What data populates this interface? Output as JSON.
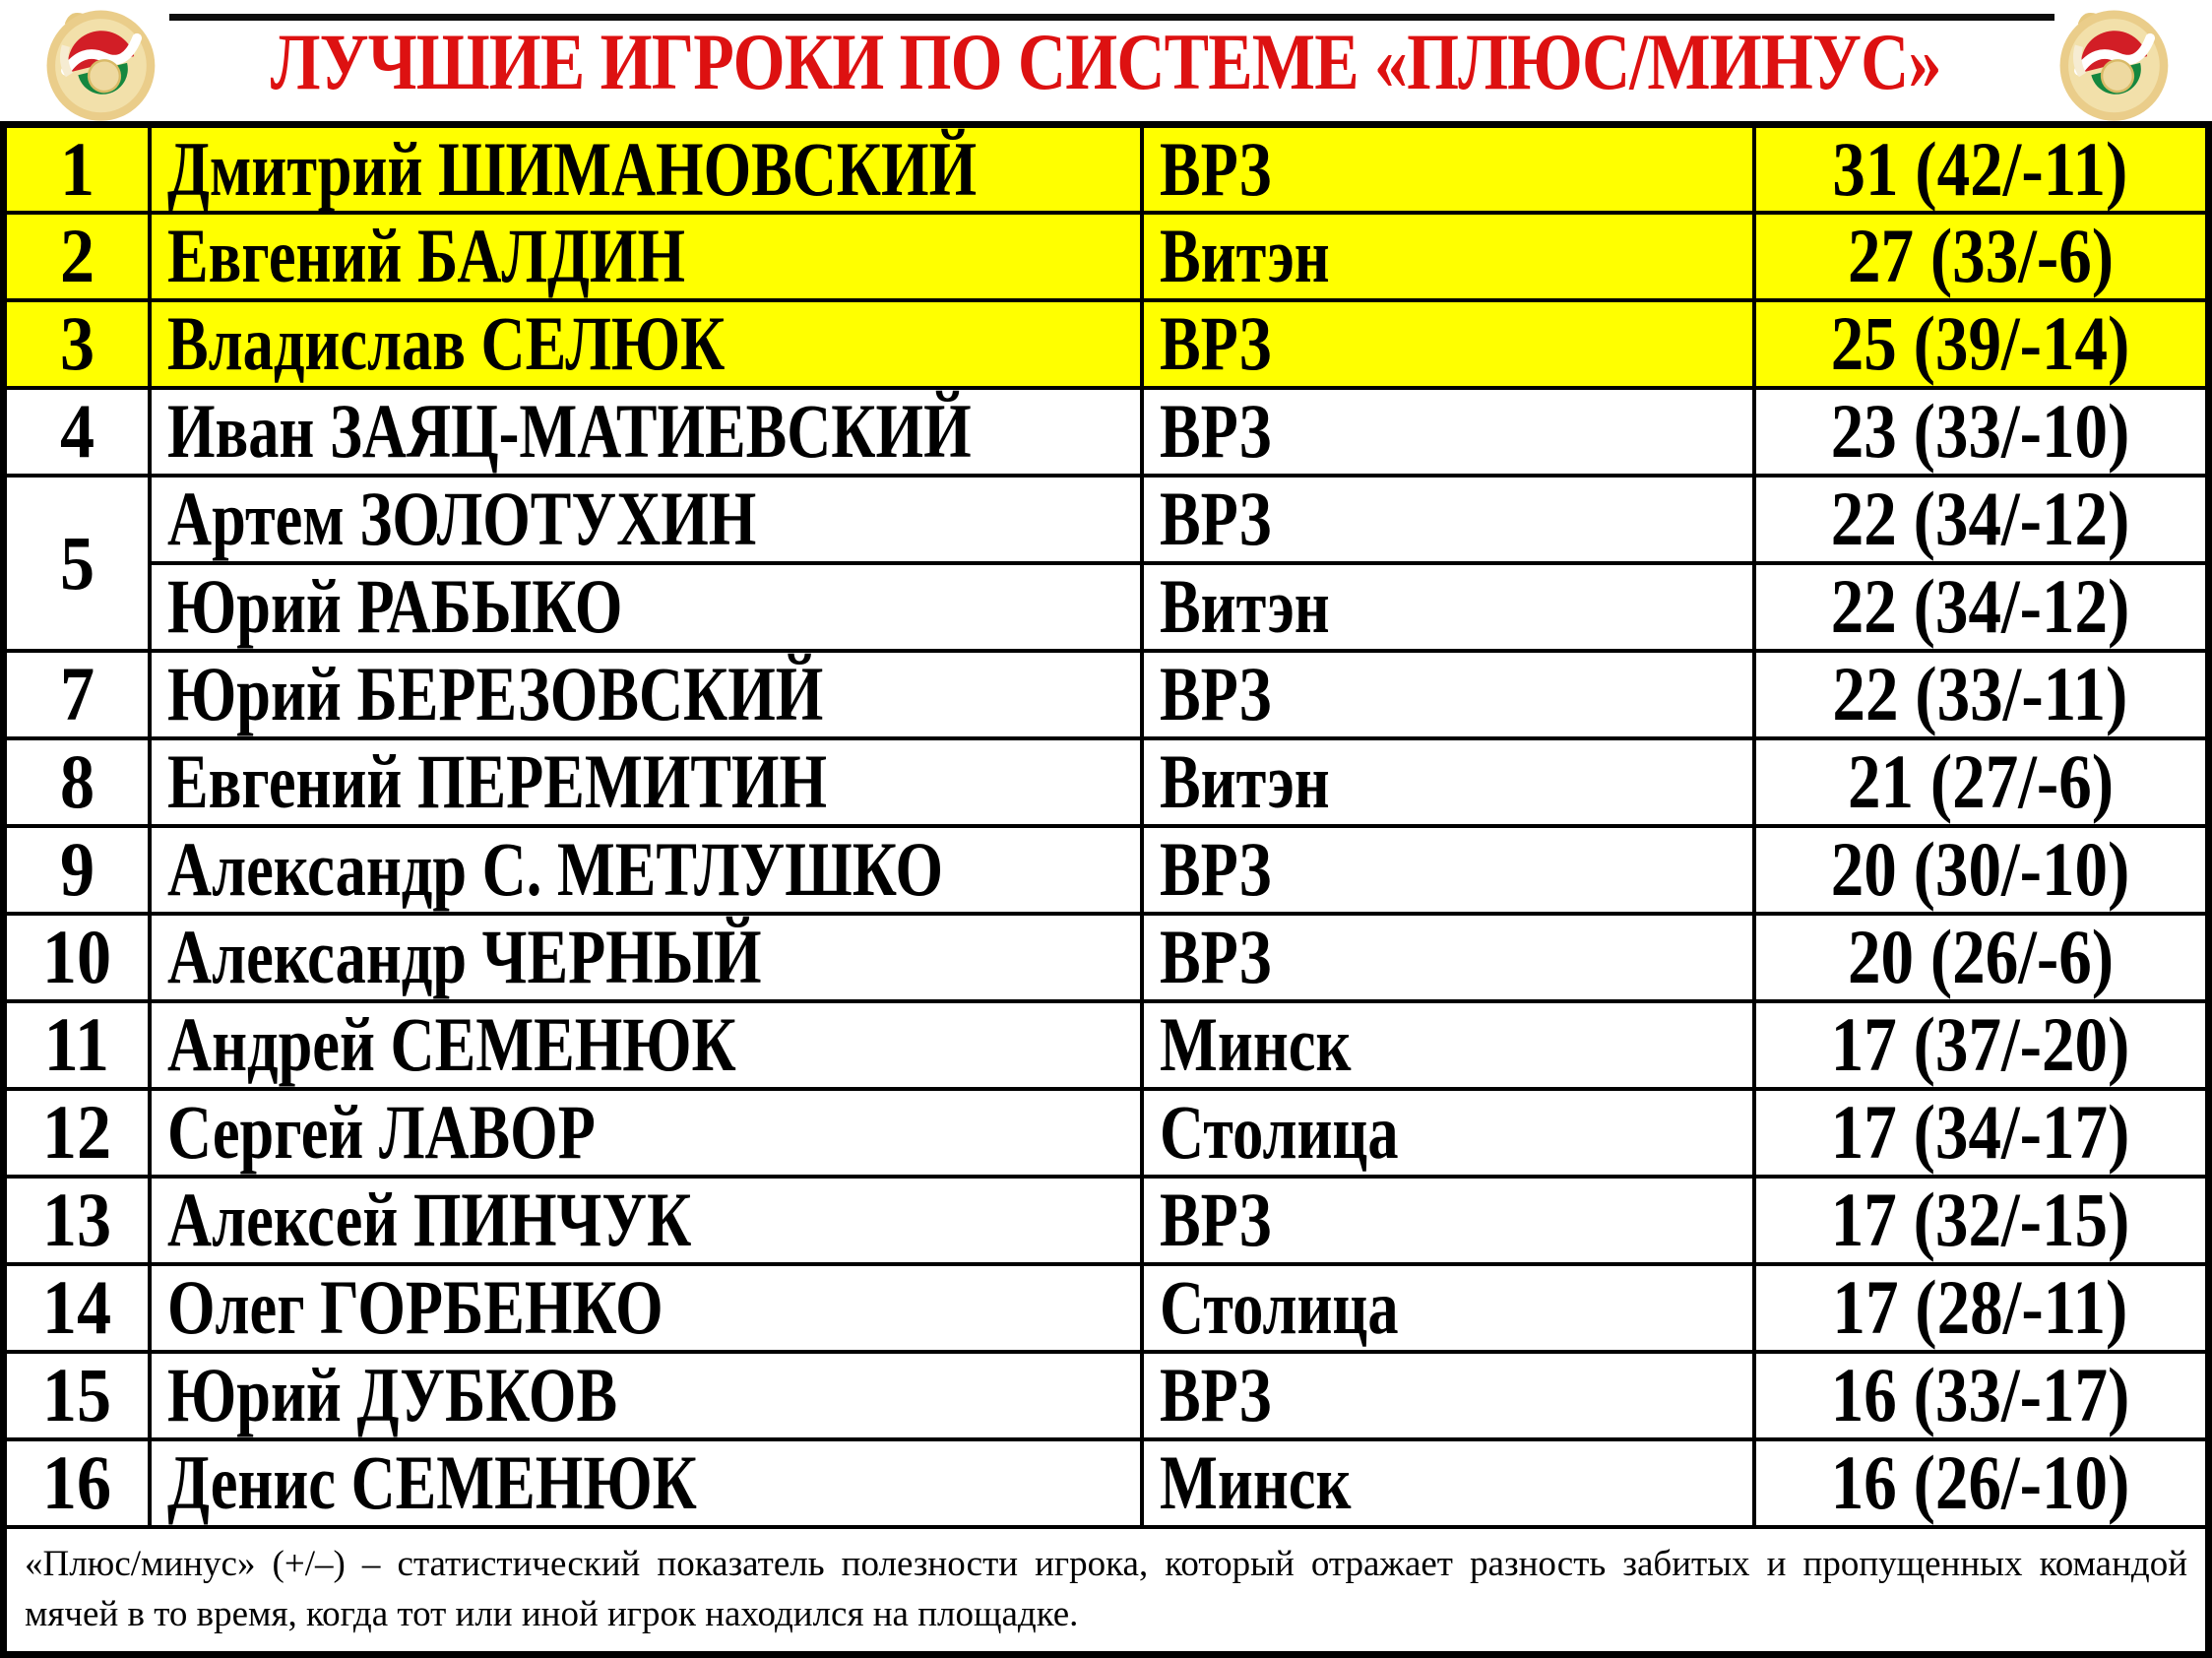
{
  "header": {
    "title": "ЛУЧШИЕ ИГРОКИ ПО СИСТЕМЕ «ПЛЮС/МИНУС»"
  },
  "logos": {
    "left": "federation-medal-logo",
    "right": "federation-medal-logo"
  },
  "table": {
    "columns": [
      "rank",
      "player",
      "team",
      "plus_minus"
    ],
    "rows": [
      {
        "rank": "1",
        "name": "Дмитрий ШИМАНОВСКИЙ",
        "team": "ВРЗ",
        "stats": "31 (42/-11)",
        "highlight": true,
        "rowspan": 1
      },
      {
        "rank": "2",
        "name": "Евгений БАЛДИН",
        "team": "Витэн",
        "stats": "27 (33/-6)",
        "highlight": true,
        "rowspan": 1
      },
      {
        "rank": "3",
        "name": "Владислав СЕЛЮК",
        "team": "ВРЗ",
        "stats": "25 (39/-14)",
        "highlight": true,
        "rowspan": 1
      },
      {
        "rank": "4",
        "name": "Иван ЗАЯЦ-МАТИЕВСКИЙ",
        "team": "ВРЗ",
        "stats": "23 (33/-10)",
        "highlight": false,
        "rowspan": 1
      },
      {
        "rank": "5",
        "name": "Артем ЗОЛОТУХИН",
        "team": "ВРЗ",
        "stats": "22 (34/-12)",
        "highlight": false,
        "rowspan": 2
      },
      {
        "rank": null,
        "name": "Юрий РАБЫКО",
        "team": "Витэн",
        "stats": "22 (34/-12)",
        "highlight": false,
        "rowspan": 1
      },
      {
        "rank": "7",
        "name": "Юрий БЕРЕЗОВСКИЙ",
        "team": "ВРЗ",
        "stats": "22 (33/-11)",
        "highlight": false,
        "rowspan": 1
      },
      {
        "rank": "8",
        "name": "Евгений ПЕРЕМИТИН",
        "team": "Витэн",
        "stats": "21 (27/-6)",
        "highlight": false,
        "rowspan": 1
      },
      {
        "rank": "9",
        "name": "Александр С. МЕТЛУШКО",
        "team": "ВРЗ",
        "stats": "20 (30/-10)",
        "highlight": false,
        "rowspan": 1
      },
      {
        "rank": "10",
        "name": "Александр ЧЕРНЫЙ",
        "team": "ВРЗ",
        "stats": "20 (26/-6)",
        "highlight": false,
        "rowspan": 1
      },
      {
        "rank": "11",
        "name": "Андрей СЕМЕНЮК",
        "team": "Минск",
        "stats": "17 (37/-20)",
        "highlight": false,
        "rowspan": 1
      },
      {
        "rank": "12",
        "name": "Сергей ЛАВОР",
        "team": "Столица",
        "stats": "17 (34/-17)",
        "highlight": false,
        "rowspan": 1
      },
      {
        "rank": "13",
        "name": "Алексей ПИНЧУК",
        "team": "ВРЗ",
        "stats": "17 (32/-15)",
        "highlight": false,
        "rowspan": 1
      },
      {
        "rank": "14",
        "name": "Олег ГОРБЕНКО",
        "team": "Столица",
        "stats": "17 (28/-11)",
        "highlight": false,
        "rowspan": 1
      },
      {
        "rank": "15",
        "name": "Юрий ДУБКОВ",
        "team": "ВРЗ",
        "stats": "16 (33/-17)",
        "highlight": false,
        "rowspan": 1
      },
      {
        "rank": "16",
        "name": "Денис СЕМЕНЮК",
        "team": "Минск",
        "stats": "16 (26/-10)",
        "highlight": false,
        "rowspan": 1
      }
    ]
  },
  "footer": {
    "note": "«Плюс/минус» (+/–) – статистический показатель полезности игрока, который отражает разность забитых и пропущенных командой мячей в то время, когда тот или иной игрок находился на площадке."
  },
  "colors": {
    "title_red": "#dd1111",
    "highlight_yellow": "#ffff00",
    "border_black": "#000000",
    "logo_gold": "#eacd8a",
    "logo_red": "#d21e26",
    "logo_green": "#15873f"
  }
}
